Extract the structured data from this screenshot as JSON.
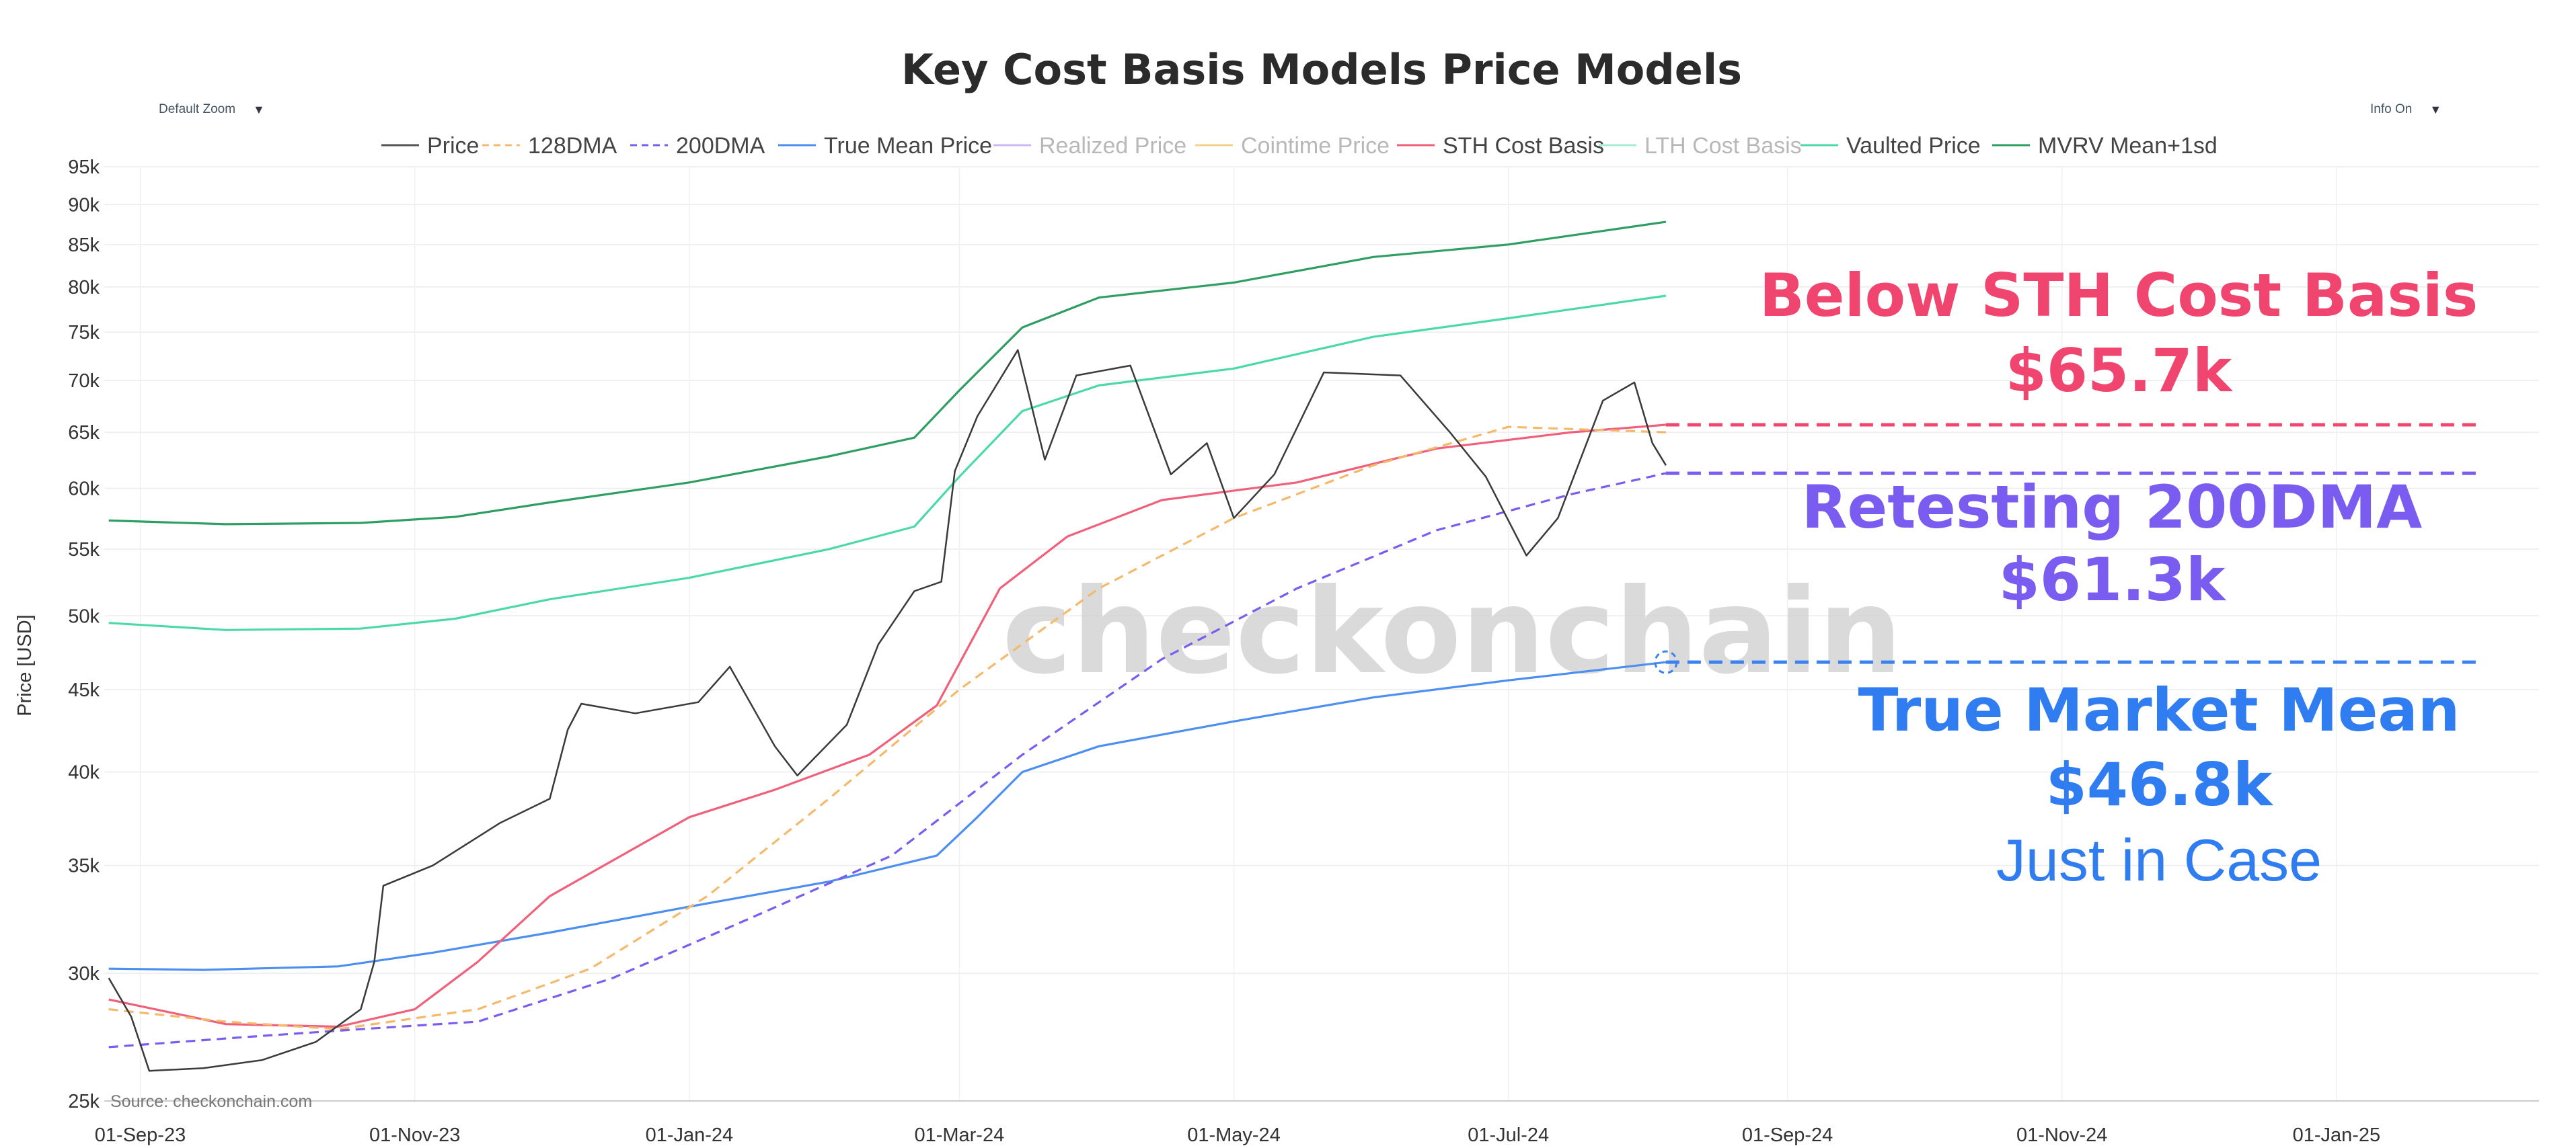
{
  "controls": {
    "zoom_label": "Default Zoom",
    "info_label": "Info On"
  },
  "chart_data": {
    "type": "line",
    "title": "Key Cost Basis Models Price Models",
    "ylabel": "Price [USD]",
    "yscale": "log",
    "ylim": [
      25000,
      95000
    ],
    "y_ticks": [
      {
        "label": "25k",
        "value": 25000
      },
      {
        "label": "30k",
        "value": 30000
      },
      {
        "label": "35k",
        "value": 35000
      },
      {
        "label": "40k",
        "value": 40000
      },
      {
        "label": "45k",
        "value": 45000
      },
      {
        "label": "50k",
        "value": 50000
      },
      {
        "label": "55k",
        "value": 55000
      },
      {
        "label": "60k",
        "value": 60000
      },
      {
        "label": "65k",
        "value": 65000
      },
      {
        "label": "70k",
        "value": 70000
      },
      {
        "label": "75k",
        "value": 75000
      },
      {
        "label": "80k",
        "value": 80000
      },
      {
        "label": "85k",
        "value": 85000
      },
      {
        "label": "90k",
        "value": 90000
      },
      {
        "label": "95k",
        "value": 95000
      }
    ],
    "x_ticks": [
      "01-Sep-23",
      "01-Nov-23",
      "01-Jan-24",
      "01-Mar-24",
      "01-May-24",
      "01-Jul-24",
      "01-Sep-24",
      "01-Nov-24",
      "01-Jan-25"
    ],
    "xlim": [
      "2023-08-24",
      "2025-02-15"
    ],
    "grid": true,
    "legend_position": "top",
    "source": "Source: checkonchain.com",
    "watermark": "checkonchain",
    "legend": [
      {
        "name": "Price",
        "color": "#555555",
        "dash": "solid",
        "muted": false
      },
      {
        "name": "128DMA",
        "color": "#f5b96b",
        "dash": "dash",
        "muted": false
      },
      {
        "name": "200DMA",
        "color": "#7a5cf0",
        "dash": "dash",
        "muted": false
      },
      {
        "name": "True Mean Price",
        "color": "#4d8ff0",
        "dash": "solid",
        "muted": false
      },
      {
        "name": "Realized Price",
        "color": "#c9b8f5",
        "dash": "solid",
        "muted": true
      },
      {
        "name": "Cointime Price",
        "color": "#f5d08a",
        "dash": "solid",
        "muted": true
      },
      {
        "name": "STH Cost Basis",
        "color": "#f0607a",
        "dash": "solid",
        "muted": false
      },
      {
        "name": "LTH Cost Basis",
        "color": "#a8ead8",
        "dash": "solid",
        "muted": true
      },
      {
        "name": "Vaulted Price",
        "color": "#4cd9a8",
        "dash": "solid",
        "muted": false
      },
      {
        "name": "MVRV Mean+1sd",
        "color": "#2f9e63",
        "dash": "solid",
        "muted": false
      }
    ],
    "series": [
      {
        "name": "MVRV Mean+1sd",
        "color": "#2f9e63",
        "dash": "solid",
        "points": [
          [
            "2023-08-25",
            57300
          ],
          [
            "2023-09-20",
            57000
          ],
          [
            "2023-10-20",
            57100
          ],
          [
            "2023-11-10",
            57600
          ],
          [
            "2023-12-01",
            58800
          ],
          [
            "2024-01-01",
            60500
          ],
          [
            "2024-02-01",
            62800
          ],
          [
            "2024-02-20",
            64500
          ],
          [
            "2024-03-01",
            69000
          ],
          [
            "2024-03-15",
            75500
          ],
          [
            "2024-04-01",
            78800
          ],
          [
            "2024-05-01",
            80500
          ],
          [
            "2024-06-01",
            83500
          ],
          [
            "2024-07-01",
            85000
          ],
          [
            "2024-08-05",
            87800
          ]
        ]
      },
      {
        "name": "Vaulted Price",
        "color": "#4cd9a8",
        "dash": "solid",
        "points": [
          [
            "2023-08-25",
            49500
          ],
          [
            "2023-09-20",
            49000
          ],
          [
            "2023-10-20",
            49100
          ],
          [
            "2023-11-10",
            49800
          ],
          [
            "2023-12-01",
            51200
          ],
          [
            "2024-01-01",
            52800
          ],
          [
            "2024-02-01",
            55000
          ],
          [
            "2024-02-20",
            56800
          ],
          [
            "2024-03-01",
            61000
          ],
          [
            "2024-03-15",
            67000
          ],
          [
            "2024-04-01",
            69500
          ],
          [
            "2024-05-01",
            71200
          ],
          [
            "2024-06-01",
            74500
          ],
          [
            "2024-07-01",
            76500
          ],
          [
            "2024-08-05",
            79000
          ]
        ]
      },
      {
        "name": "True Mean Price",
        "color": "#4d8ff0",
        "dash": "solid",
        "points": [
          [
            "2023-08-25",
            30200
          ],
          [
            "2023-09-15",
            30150
          ],
          [
            "2023-10-15",
            30300
          ],
          [
            "2023-11-05",
            30900
          ],
          [
            "2023-12-01",
            31800
          ],
          [
            "2024-01-01",
            33000
          ],
          [
            "2024-02-01",
            34200
          ],
          [
            "2024-02-25",
            35500
          ],
          [
            "2024-03-05",
            37500
          ],
          [
            "2024-03-15",
            40000
          ],
          [
            "2024-04-01",
            41500
          ],
          [
            "2024-05-01",
            43000
          ],
          [
            "2024-06-01",
            44500
          ],
          [
            "2024-07-01",
            45600
          ],
          [
            "2024-08-05",
            46800
          ]
        ]
      },
      {
        "name": "STH Cost Basis",
        "color": "#f0607a",
        "dash": "solid",
        "points": [
          [
            "2023-08-25",
            28900
          ],
          [
            "2023-09-20",
            27900
          ],
          [
            "2023-10-15",
            27800
          ],
          [
            "2023-11-01",
            28500
          ],
          [
            "2023-11-15",
            30500
          ],
          [
            "2023-12-01",
            33500
          ],
          [
            "2024-01-01",
            37500
          ],
          [
            "2024-01-20",
            39000
          ],
          [
            "2024-02-10",
            41000
          ],
          [
            "2024-02-25",
            44000
          ],
          [
            "2024-03-10",
            52000
          ],
          [
            "2024-03-25",
            56000
          ],
          [
            "2024-04-15",
            59000
          ],
          [
            "2024-05-15",
            60500
          ],
          [
            "2024-06-15",
            63500
          ],
          [
            "2024-07-15",
            65000
          ],
          [
            "2024-08-05",
            65700
          ]
        ]
      },
      {
        "name": "128DMA",
        "color": "#f5b96b",
        "dash": "dash",
        "points": [
          [
            "2023-08-25",
            28500
          ],
          [
            "2023-09-20",
            28000
          ],
          [
            "2023-10-15",
            27700
          ],
          [
            "2023-11-15",
            28500
          ],
          [
            "2023-12-10",
            30200
          ],
          [
            "2024-01-05",
            33500
          ],
          [
            "2024-02-01",
            38500
          ],
          [
            "2024-03-01",
            45000
          ],
          [
            "2024-04-01",
            52000
          ],
          [
            "2024-05-01",
            57500
          ],
          [
            "2024-06-01",
            62000
          ],
          [
            "2024-07-01",
            65500
          ],
          [
            "2024-08-05",
            65000
          ]
        ]
      },
      {
        "name": "200DMA",
        "color": "#7a5cf0",
        "dash": "dash",
        "points": [
          [
            "2023-08-25",
            27000
          ],
          [
            "2023-09-25",
            27400
          ],
          [
            "2023-10-20",
            27700
          ],
          [
            "2023-11-15",
            28000
          ],
          [
            "2023-12-15",
            29800
          ],
          [
            "2024-01-15",
            32500
          ],
          [
            "2024-02-15",
            35500
          ],
          [
            "2024-03-15",
            41000
          ],
          [
            "2024-04-15",
            47000
          ],
          [
            "2024-05-15",
            52000
          ],
          [
            "2024-06-15",
            56500
          ],
          [
            "2024-07-15",
            59500
          ],
          [
            "2024-08-05",
            61300
          ]
        ]
      },
      {
        "name": "Price",
        "color": "#3a3a3a",
        "dash": "solid",
        "points": [
          [
            "2023-08-25",
            29800
          ],
          [
            "2023-08-30",
            28200
          ],
          [
            "2023-09-03",
            26100
          ],
          [
            "2023-09-15",
            26200
          ],
          [
            "2023-09-28",
            26500
          ],
          [
            "2023-10-10",
            27200
          ],
          [
            "2023-10-20",
            28500
          ],
          [
            "2023-10-23",
            30500
          ],
          [
            "2023-10-25",
            34000
          ],
          [
            "2023-11-05",
            35000
          ],
          [
            "2023-11-20",
            37200
          ],
          [
            "2023-12-01",
            38500
          ],
          [
            "2023-12-05",
            42500
          ],
          [
            "2023-12-08",
            44100
          ],
          [
            "2023-12-20",
            43500
          ],
          [
            "2024-01-03",
            44200
          ],
          [
            "2024-01-10",
            46500
          ],
          [
            "2024-01-20",
            41500
          ],
          [
            "2024-01-25",
            39800
          ],
          [
            "2024-02-05",
            42800
          ],
          [
            "2024-02-12",
            48000
          ],
          [
            "2024-02-20",
            51800
          ],
          [
            "2024-02-26",
            52500
          ],
          [
            "2024-02-29",
            61500
          ],
          [
            "2024-03-05",
            66500
          ],
          [
            "2024-03-14",
            73100
          ],
          [
            "2024-03-20",
            62500
          ],
          [
            "2024-03-27",
            70500
          ],
          [
            "2024-04-08",
            71500
          ],
          [
            "2024-04-17",
            61200
          ],
          [
            "2024-04-25",
            64000
          ],
          [
            "2024-05-01",
            57500
          ],
          [
            "2024-05-10",
            61200
          ],
          [
            "2024-05-21",
            70800
          ],
          [
            "2024-06-07",
            70500
          ],
          [
            "2024-06-18",
            65000
          ],
          [
            "2024-06-26",
            61000
          ],
          [
            "2024-07-05",
            54500
          ],
          [
            "2024-07-12",
            57500
          ],
          [
            "2024-07-22",
            68000
          ],
          [
            "2024-07-29",
            69800
          ],
          [
            "2024-08-02",
            64000
          ],
          [
            "2024-08-05",
            62000
          ]
        ]
      }
    ],
    "markers": [
      {
        "name": "STH Cost Basis level",
        "value": 65700,
        "color": "#f0456e",
        "from": "2024-08-05",
        "to": "2025-02-01"
      },
      {
        "name": "200DMA level",
        "value": 61300,
        "color": "#7a5cf0",
        "from": "2024-08-05",
        "to": "2025-02-01"
      },
      {
        "name": "True Market Mean level",
        "value": 46800,
        "color": "#3b82f0",
        "from": "2024-08-05",
        "to": "2025-02-01"
      }
    ],
    "annotations": [
      {
        "line1": "Below STH Cost Basis",
        "line2": "$65.7k",
        "color": "#f0456e"
      },
      {
        "line1": "Retesting 200DMA",
        "line2": "$61.3k",
        "color": "#7a5cf0"
      },
      {
        "line1": "True Market Mean",
        "line2": "$46.8k",
        "line3": "Just in Case",
        "color": "#2f7df0"
      }
    ]
  }
}
